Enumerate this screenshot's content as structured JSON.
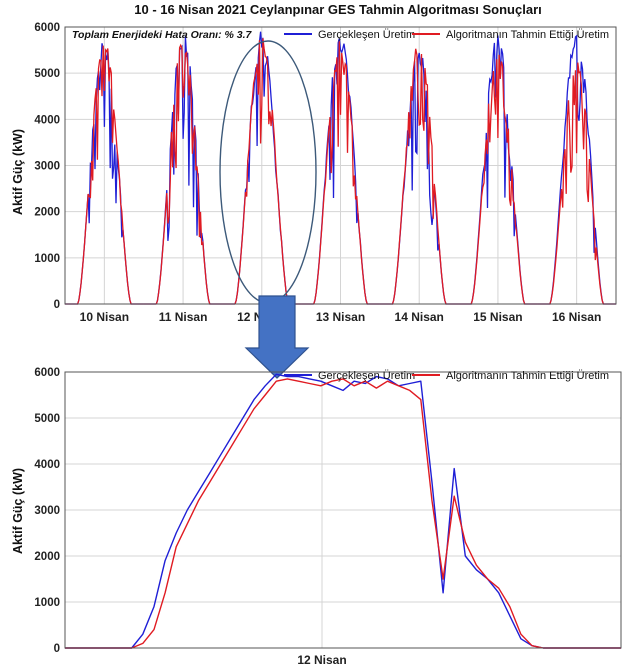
{
  "chart_data": [
    {
      "type": "line",
      "title": "10 - 16 Nisan 2021 Ceylanpınar GES Tahmin Algoritması Sonuçları",
      "annotation": "Toplam Enerjideki Hata Oranı: % 3.7",
      "ylabel": "Aktif Güç (kW)",
      "xlabel": "",
      "ylim": [
        0,
        6000
      ],
      "yticks": [
        0,
        1000,
        2000,
        3000,
        4000,
        5000,
        6000
      ],
      "categories": [
        "10 Nisan",
        "11 Nisan",
        "12 Nisan",
        "13 Nisan",
        "14 Nisan",
        "15 Nisan",
        "16 Nisan"
      ],
      "grid": true,
      "legend_position": "top-right",
      "highlight": "12 Nisan (ellipse)",
      "series": [
        {
          "name": "Gerçekleşen Üretim",
          "color": "#1f1fd6",
          "daily_peak": [
            5750,
            5950,
            5950,
            5950,
            5650,
            5900,
            5950
          ]
        },
        {
          "name": "Algoritmanın Tahmin Ettiği Üretim",
          "color": "#e01b22",
          "daily_peak": [
            5750,
            5800,
            5850,
            5800,
            5750,
            5600,
            5350
          ]
        }
      ]
    },
    {
      "type": "line",
      "title": "",
      "ylabel": "Aktif Güç (kW)",
      "xlabel": "12 Nisan",
      "ylim": [
        0,
        6000
      ],
      "yticks": [
        0,
        1000,
        2000,
        3000,
        4000,
        5000,
        6000
      ],
      "grid": true,
      "legend_position": "top-right",
      "series": [
        {
          "name": "Gerçekleşen Üretim",
          "color": "#1f1fd6",
          "x": [
            0.0,
            0.12,
            0.14,
            0.16,
            0.18,
            0.2,
            0.22,
            0.24,
            0.26,
            0.28,
            0.3,
            0.32,
            0.34,
            0.36,
            0.38,
            0.4,
            0.42,
            0.44,
            0.46,
            0.48,
            0.5,
            0.52,
            0.54,
            0.56,
            0.58,
            0.6,
            0.62,
            0.64,
            0.66,
            0.68,
            0.7,
            0.72,
            0.74,
            0.76,
            0.78,
            0.8,
            0.82,
            0.84,
            0.86,
            0.88,
            1.0
          ],
          "values": [
            0,
            0,
            300,
            900,
            1900,
            2500,
            3000,
            3400,
            3800,
            4200,
            4600,
            5000,
            5400,
            5700,
            5950,
            5900,
            5900,
            5850,
            5800,
            5700,
            5600,
            5800,
            5750,
            5900,
            5850,
            5700,
            5750,
            5800,
            3600,
            1200,
            3900,
            2000,
            1700,
            1500,
            1200,
            700,
            200,
            50,
            0,
            0,
            0
          ]
        },
        {
          "name": "Algoritmanın Tahmin Ettiği Üretim",
          "color": "#e01b22",
          "x": [
            0.0,
            0.12,
            0.14,
            0.16,
            0.18,
            0.2,
            0.22,
            0.24,
            0.26,
            0.28,
            0.3,
            0.32,
            0.34,
            0.36,
            0.38,
            0.4,
            0.42,
            0.44,
            0.46,
            0.48,
            0.5,
            0.52,
            0.54,
            0.56,
            0.58,
            0.6,
            0.62,
            0.64,
            0.66,
            0.68,
            0.7,
            0.72,
            0.74,
            0.76,
            0.78,
            0.8,
            0.82,
            0.84,
            0.86,
            0.88,
            1.0
          ],
          "values": [
            0,
            0,
            100,
            400,
            1200,
            2200,
            2700,
            3200,
            3600,
            4000,
            4400,
            4800,
            5200,
            5500,
            5800,
            5850,
            5800,
            5750,
            5700,
            5800,
            5850,
            5700,
            5800,
            5650,
            5800,
            5700,
            5600,
            5400,
            3200,
            1500,
            3300,
            2300,
            1800,
            1500,
            1300,
            900,
            300,
            50,
            0,
            0,
            0
          ]
        }
      ]
    }
  ]
}
